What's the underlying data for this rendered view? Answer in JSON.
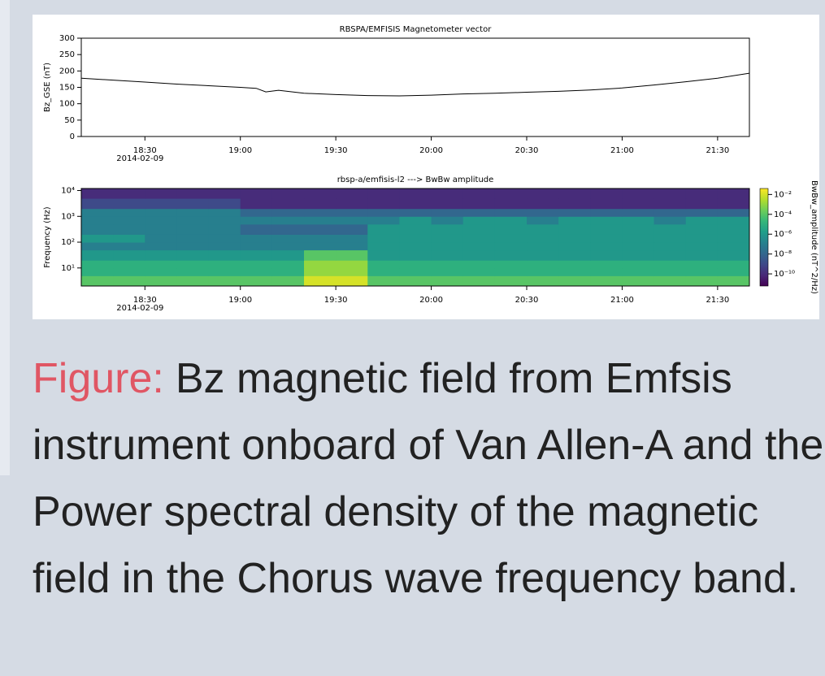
{
  "chart_data": [
    {
      "type": "line",
      "title": "RBSPA/EMFISIS  Magnetometer vector",
      "ylabel": "Bz_GSE (nT)",
      "date": "2014-02-09",
      "color": "#000000",
      "x": [
        "18:10",
        "18:20",
        "18:30",
        "18:40",
        "18:50",
        "19:00",
        "19:05",
        "19:08",
        "19:12",
        "19:20",
        "19:30",
        "19:40",
        "19:50",
        "20:00",
        "20:10",
        "20:20",
        "20:30",
        "20:40",
        "20:50",
        "21:00",
        "21:10",
        "21:20",
        "21:30",
        "21:40"
      ],
      "values": [
        178,
        172,
        166,
        160,
        155,
        150,
        147,
        136,
        141,
        132,
        128,
        125,
        124,
        126,
        130,
        132,
        135,
        138,
        142,
        148,
        157,
        167,
        178,
        193
      ],
      "xlim": [
        "18:10",
        "21:40"
      ],
      "xticks": [
        "18:30",
        "19:00",
        "19:30",
        "20:00",
        "20:30",
        "21:00",
        "21:30"
      ],
      "ylim": [
        0,
        300
      ],
      "yticks": [
        0,
        50,
        100,
        150,
        200,
        250,
        300
      ]
    },
    {
      "type": "heatmap",
      "title": "rbsp-a/emfisis-l2  --->  BwBw amplitude",
      "ylabel": "Frequency (Hz)",
      "colorbar_label": "BwBw_amplitude (nT^2/Hz)",
      "date": "2014-02-09",
      "colormap": "viridis",
      "yscale": "log",
      "x_bins": [
        "18:10",
        "18:20",
        "18:30",
        "18:40",
        "18:50",
        "19:00",
        "19:10",
        "19:20",
        "19:30",
        "19:40",
        "19:50",
        "20:00",
        "20:10",
        "20:20",
        "20:30",
        "20:40",
        "20:50",
        "21:00",
        "21:10",
        "21:20",
        "21:30",
        "21:40"
      ],
      "bins": [
        2,
        5,
        10,
        20,
        50,
        100,
        200,
        500,
        1000,
        2000,
        5000,
        12000
      ],
      "values": [
        [
          0.0001,
          0.0001,
          0.0001,
          0.0001,
          0.0001,
          0.0001,
          0.0001,
          0.01,
          0.01,
          0.0001,
          0.0001,
          0.0001,
          0.0001,
          0.0001,
          0.0001,
          0.0001,
          0.0001,
          0.0001,
          0.0001,
          0.0001,
          0.0001
        ],
        [
          1e-05,
          1e-05,
          1e-05,
          1e-05,
          1e-05,
          1e-05,
          1e-05,
          0.001,
          0.001,
          1e-05,
          1e-05,
          1e-05,
          1e-05,
          1e-05,
          1e-05,
          1e-05,
          1e-05,
          1e-05,
          1e-05,
          1e-05,
          1e-05
        ],
        [
          1e-05,
          1e-05,
          1e-05,
          1e-05,
          1e-05,
          1e-05,
          1e-05,
          0.001,
          0.001,
          1e-05,
          1e-05,
          1e-05,
          1e-05,
          1e-05,
          1e-05,
          1e-05,
          1e-05,
          1e-05,
          1e-05,
          1e-05,
          1e-05
        ],
        [
          1e-06,
          1e-06,
          1e-06,
          1e-06,
          1e-06,
          1e-06,
          1e-06,
          0.0001,
          0.0001,
          1e-06,
          1e-06,
          1e-06,
          1e-06,
          1e-06,
          1e-06,
          1e-06,
          1e-06,
          1e-06,
          1e-06,
          1e-06,
          1e-06
        ],
        [
          1e-07,
          1e-07,
          1e-07,
          1e-07,
          1e-07,
          1e-07,
          1e-07,
          1e-07,
          1e-07,
          1e-06,
          1e-06,
          1e-06,
          1e-06,
          1e-06,
          1e-06,
          1e-06,
          1e-06,
          1e-06,
          1e-06,
          1e-06,
          1e-06
        ],
        [
          1e-06,
          1e-06,
          1e-07,
          1e-07,
          1e-07,
          1e-07,
          1e-07,
          1e-07,
          1e-07,
          1e-06,
          1e-06,
          1e-06,
          1e-06,
          1e-06,
          1e-06,
          1e-06,
          1e-06,
          1e-06,
          1e-06,
          1e-06,
          1e-06
        ],
        [
          1e-07,
          1e-07,
          1e-07,
          1e-07,
          1e-07,
          1e-08,
          1e-08,
          1e-08,
          1e-08,
          1e-06,
          1e-06,
          1e-06,
          1e-06,
          1e-06,
          1e-06,
          1e-06,
          1e-06,
          1e-06,
          1e-06,
          1e-06,
          1e-06
        ],
        [
          1e-07,
          1e-07,
          1e-07,
          1e-07,
          1e-07,
          1e-07,
          1e-07,
          1e-07,
          1e-07,
          1e-07,
          1e-06,
          1e-07,
          1e-06,
          1e-06,
          1e-07,
          1e-06,
          1e-06,
          1e-06,
          1e-07,
          1e-06,
          1e-06
        ],
        [
          1e-07,
          1e-07,
          1e-07,
          1e-07,
          1e-07,
          1e-08,
          1e-08,
          1e-08,
          1e-08,
          1e-08,
          1e-08,
          1e-08,
          1e-08,
          1e-08,
          1e-08,
          1e-08,
          1e-08,
          1e-08,
          1e-08,
          1e-08,
          1e-08
        ],
        [
          1e-09,
          1e-09,
          1e-09,
          1e-09,
          1e-09,
          1e-10,
          1e-10,
          1e-10,
          1e-10,
          1e-10,
          1e-10,
          1e-10,
          1e-10,
          1e-10,
          1e-10,
          1e-10,
          1e-10,
          1e-10,
          1e-10,
          1e-10,
          1e-10
        ],
        [
          1e-10,
          1e-10,
          1e-10,
          1e-10,
          1e-10,
          1e-10,
          1e-10,
          1e-10,
          1e-10,
          1e-10,
          1e-10,
          1e-10,
          1e-10,
          1e-10,
          1e-10,
          1e-10,
          1e-10,
          1e-10,
          1e-10,
          1e-10,
          1e-10
        ]
      ],
      "xlim": [
        "18:10",
        "21:40"
      ],
      "xticks": [
        "18:30",
        "19:00",
        "19:30",
        "20:00",
        "20:30",
        "21:00",
        "21:30"
      ],
      "ylim": [
        2,
        12000
      ],
      "yticks": [
        {
          "value": 10,
          "label": "10¹"
        },
        {
          "value": 100,
          "label": "10²"
        },
        {
          "value": 1000,
          "label": "10³"
        },
        {
          "value": 10000,
          "label": "10⁴"
        }
      ],
      "zlim": [
        6e-12,
        0.04
      ],
      "zticks": [
        {
          "value": 0.01,
          "label": "10⁻²"
        },
        {
          "value": 0.0001,
          "label": "10⁻⁴"
        },
        {
          "value": 1e-06,
          "label": "10⁻⁶"
        },
        {
          "value": 1e-08,
          "label": "10⁻⁸"
        },
        {
          "value": 1e-10,
          "label": "10⁻¹⁰"
        }
      ]
    }
  ],
  "caption": {
    "label": "Figure:",
    "text": "Bz magnetic field from Emfsis instrument onboard of Van Allen-A and the Power spectral density of the magnetic field in the Chorus wave frequency band."
  }
}
